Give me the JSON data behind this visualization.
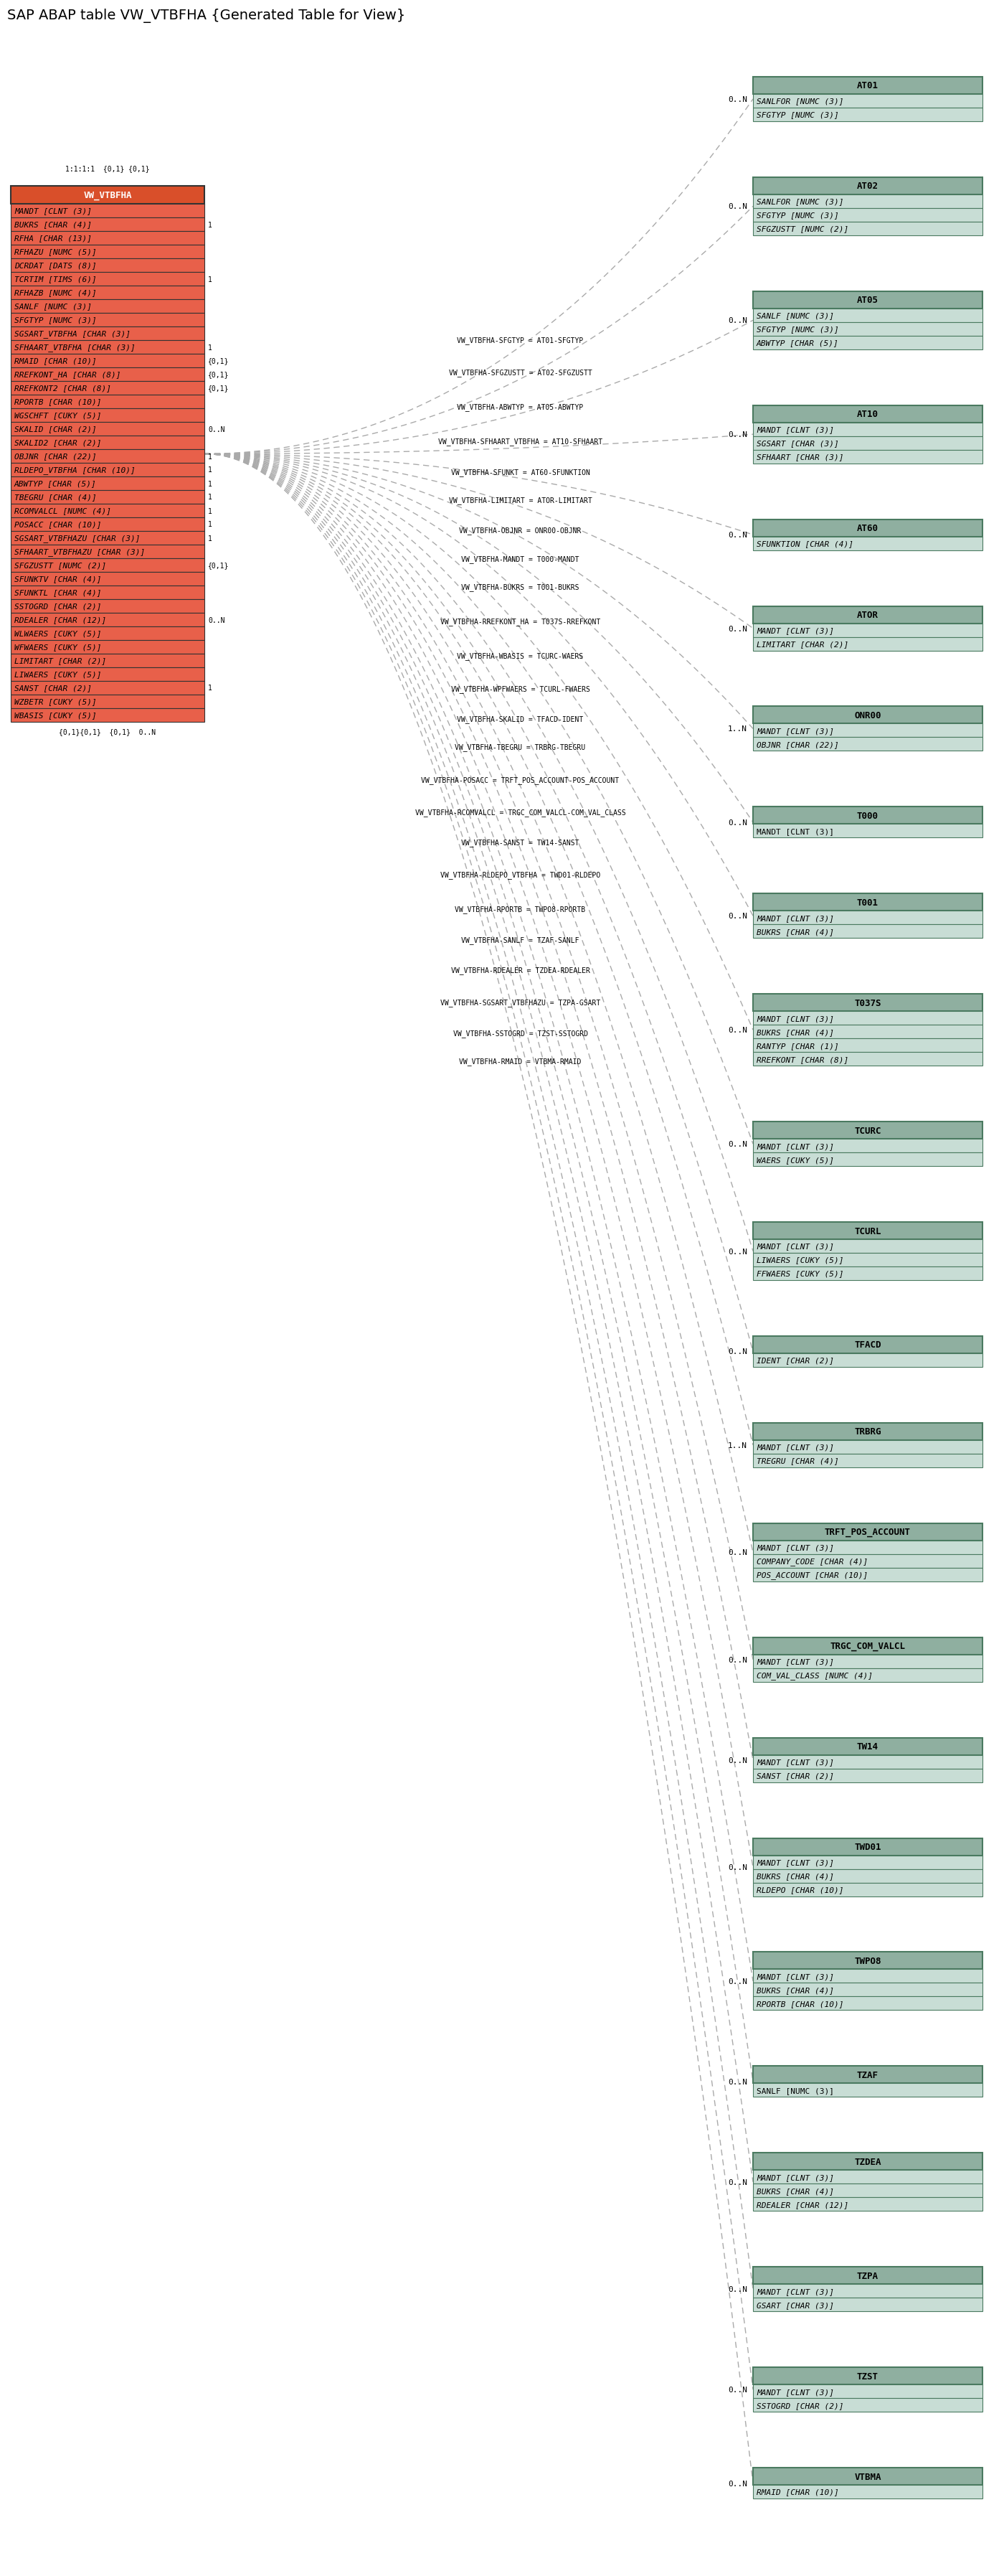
{
  "title": "SAP ABAP table VW_VTBFHA {Generated Table for View}",
  "main_table_name": "VW_VTBFHA",
  "main_fields": [
    [
      "MANDT",
      "CLNT (3)",
      true
    ],
    [
      "BUKRS",
      "CHAR (4)",
      true
    ],
    [
      "RFHA",
      "CHAR (13)",
      true
    ],
    [
      "RFHAZU",
      "NUMC (5)",
      true
    ],
    [
      "DCRDAT",
      "DATS (8)",
      true
    ],
    [
      "TCRTIM",
      "TIMS (6)",
      true
    ],
    [
      "RFHAZB",
      "NUMC (4)",
      true
    ],
    [
      "SANLF",
      "NUMC (3)",
      true
    ],
    [
      "SFGTYP",
      "NUMC (3)",
      true
    ],
    [
      "SGSART_VTBFHA",
      "CHAR (3)",
      true
    ],
    [
      "SFHAART_VTBFHA",
      "CHAR (3)",
      true
    ],
    [
      "RMAID",
      "CHAR (10)",
      true
    ],
    [
      "RREFKONT_HA",
      "CHAR (8)",
      true
    ],
    [
      "RREFKONT2",
      "CHAR (8)",
      true
    ],
    [
      "RPORTB",
      "CHAR (10)",
      true
    ],
    [
      "WGSCHFT",
      "CUKY (5)",
      true
    ],
    [
      "SKALID",
      "CHAR (2)",
      true
    ],
    [
      "SKALID2",
      "CHAR (2)",
      true
    ],
    [
      "OBJNR",
      "CHAR (22)",
      true
    ],
    [
      "RLDEPO_VTBFHA",
      "CHAR (10)",
      true
    ],
    [
      "ABWTYP",
      "CHAR (5)",
      true
    ],
    [
      "TBEGRU",
      "CHAR (4)",
      true
    ],
    [
      "RCOMVALCL",
      "NUMC (4)",
      true
    ],
    [
      "POSACC",
      "CHAR (10)",
      true
    ],
    [
      "SGSART_VTBFHAZU",
      "CHAR (3)",
      true
    ],
    [
      "SFHAART_VTBFHAZU",
      "CHAR (3)",
      true
    ],
    [
      "SFGZUSTT",
      "NUMC (2)",
      true
    ],
    [
      "SFUNKTV",
      "CHAR (4)",
      true
    ],
    [
      "SFUNKTL",
      "CHAR (4)",
      true
    ],
    [
      "SSTOGRD",
      "CHAR (2)",
      true
    ],
    [
      "RDEALER",
      "CHAR (12)",
      true
    ],
    [
      "WLWAERS",
      "CUKY (5)",
      true
    ],
    [
      "WFWAERS",
      "CUKY (5)",
      true
    ],
    [
      "LIMITART",
      "CHAR (2)",
      true
    ],
    [
      "LIWAERS",
      "CUKY (5)",
      true
    ],
    [
      "SANST",
      "CHAR (2)",
      true
    ],
    [
      "WZBETR",
      "CUKY (5)",
      true
    ],
    [
      "WBASIS",
      "CUKY (5)",
      true
    ]
  ],
  "related_tables": [
    {
      "name": "AT01",
      "fields": [
        [
          "SANLFOR",
          "NUMC (3)",
          true
        ],
        [
          "SFGTYP",
          "NUMC (3)",
          true
        ]
      ],
      "relation_label": "VW_VTBFHA-SFGTYP = AT01-SFGTYP",
      "cardinality": "0..N"
    },
    {
      "name": "AT02",
      "fields": [
        [
          "SANLFOR",
          "NUMC (3)",
          true
        ],
        [
          "SFGTYP",
          "NUMC (3)",
          true
        ],
        [
          "SFGZUSTT",
          "NUMC (2)",
          true
        ]
      ],
      "relation_label": "VW_VTBFHA-SFGZUSTT = AT02-SFGZUSTT",
      "cardinality": "0..N"
    },
    {
      "name": "AT05",
      "fields": [
        [
          "SANLF",
          "NUMC (3)",
          true
        ],
        [
          "SFGTYP",
          "NUMC (3)",
          true
        ],
        [
          "ABWTYP",
          "CHAR (5)",
          true
        ]
      ],
      "relation_label": "VW_VTBFHA-ABWTYP = AT05-ABWTYP",
      "cardinality": "0..N"
    },
    {
      "name": "AT10",
      "fields": [
        [
          "MANDT",
          "CLNT (3)",
          true
        ],
        [
          "SGSART",
          "CHAR (3)",
          true
        ],
        [
          "SFHAART",
          "CHAR (3)",
          true
        ]
      ],
      "relation_label": "VW_VTBFHA-SFHAART_VTBFHA = AT10-SFHAART",
      "cardinality": "0..N"
    },
    {
      "name": "AT60",
      "fields": [
        [
          "SFUNKTION",
          "CHAR (4)",
          true
        ]
      ],
      "relation_label": "VW_VTBFHA-SFUNKT = AT60-SFUNKTION",
      "cardinality": "0..N"
    },
    {
      "name": "ATOR",
      "fields": [
        [
          "MANDT",
          "CLNT (3)",
          true
        ],
        [
          "LIMITART",
          "CHAR (2)",
          true
        ]
      ],
      "relation_label": "VW_VTBFHA-LIMITART = ATOR-LIMITART",
      "cardinality": "0..N"
    },
    {
      "name": "ONR00",
      "fields": [
        [
          "MANDT",
          "CLNT (3)",
          true
        ],
        [
          "OBJNR",
          "CHAR (22)",
          true
        ]
      ],
      "relation_label": "VW_VTBFHA-OBJNR = ONR00-OBJNR",
      "cardinality": "1..N"
    },
    {
      "name": "T000",
      "fields": [
        [
          "MANDT",
          "CLNT (3)",
          false
        ]
      ],
      "relation_label": "VW_VTBFHA-MANDT = T000-MANDT",
      "cardinality": "0..N"
    },
    {
      "name": "T001",
      "fields": [
        [
          "MANDT",
          "CLNT (3)",
          true
        ],
        [
          "BUKRS",
          "CHAR (4)",
          true
        ]
      ],
      "relation_label": "VW_VTBFHA-BUKRS = T001-BUKRS",
      "cardinality": "0..N"
    },
    {
      "name": "T037S",
      "fields": [
        [
          "MANDT",
          "CLNT (3)",
          true
        ],
        [
          "BUKRS",
          "CHAR (4)",
          true
        ],
        [
          "RANTYP",
          "CHAR (1)",
          true
        ],
        [
          "RREFKONT",
          "CHAR (8)",
          true
        ]
      ],
      "relation_label": "VW_VTBFHA-RREFKONT_HA = T037S-RREFKONT",
      "cardinality": "0..N"
    },
    {
      "name": "TCURC",
      "fields": [
        [
          "MANDT",
          "CLNT (3)",
          true
        ],
        [
          "WAERS",
          "CUKY (5)",
          true
        ]
      ],
      "relation_label": "VW_VTBFHA-WBASIS = TCURC-WAERS",
      "cardinality": "0..N"
    },
    {
      "name": "TCURL",
      "fields": [
        [
          "MANDT",
          "CLNT (3)",
          true
        ],
        [
          "LIWAERS",
          "CUKY (5)",
          true
        ],
        [
          "FFWAERS",
          "CUKY (5)",
          true
        ]
      ],
      "relation_label": "VW_VTBFHA-WPFWAERS = TCURL-FWAERS",
      "cardinality": "0..N"
    },
    {
      "name": "TFACD",
      "fields": [
        [
          "IDENT",
          "CHAR (2)",
          true
        ]
      ],
      "relation_label": "VW_VTBFHA-SKALID = TFACD-IDENT",
      "cardinality": "0..N"
    },
    {
      "name": "TRBRG",
      "fields": [
        [
          "MANDT",
          "CLNT (3)",
          true
        ],
        [
          "TREGRU",
          "CHAR (4)",
          true
        ]
      ],
      "relation_label": "VW_VTBFHA-TBEGRU = TRBRG-TBEGRU",
      "cardinality": "1..N"
    },
    {
      "name": "TRFT_POS_ACCOUNT",
      "fields": [
        [
          "MANDT",
          "CLNT (3)",
          true
        ],
        [
          "COMPANY_CODE",
          "CHAR (4)",
          true
        ],
        [
          "POS_ACCOUNT",
          "CHAR (10)",
          true
        ]
      ],
      "relation_label": "VW_VTBFHA-POSACC = TRFT_POS_ACCOUNT-POS_ACCOUNT",
      "cardinality": "0..N"
    },
    {
      "name": "TRGC_COM_VALCL",
      "fields": [
        [
          "MANDT",
          "CLNT (3)",
          true
        ],
        [
          "COM_VAL_CLASS",
          "NUMC (4)",
          true
        ]
      ],
      "relation_label": "VW_VTBFHA-RCOMVALCL = TRGC_COM_VALCL-COM_VAL_CLASS",
      "cardinality": "0..N"
    },
    {
      "name": "TW14",
      "fields": [
        [
          "MANDT",
          "CLNT (3)",
          true
        ],
        [
          "SANST",
          "CHAR (2)",
          true
        ]
      ],
      "relation_label": "VW_VTBFHA-SANST = TW14-SANST",
      "cardinality": "0..N"
    },
    {
      "name": "TWD01",
      "fields": [
        [
          "MANDT",
          "CLNT (3)",
          true
        ],
        [
          "BUKRS",
          "CHAR (4)",
          true
        ],
        [
          "RLDEPO",
          "CHAR (10)",
          true
        ]
      ],
      "relation_label": "VW_VTBFHA-RLDEPO_VTBFHA = TWD01-RLDEPO",
      "cardinality": "0..N"
    },
    {
      "name": "TWPO8",
      "fields": [
        [
          "MANDT",
          "CLNT (3)",
          true
        ],
        [
          "BUKRS",
          "CHAR (4)",
          true
        ],
        [
          "RPORTB",
          "CHAR (10)",
          true
        ]
      ],
      "relation_label": "VW_VTBFHA-RPORTB = TWPO8-RPORTB",
      "cardinality": "0..N"
    },
    {
      "name": "TZAF",
      "fields": [
        [
          "SANLF",
          "NUMC (3)",
          false
        ]
      ],
      "relation_label": "VW_VTBFHA-SANLF = TZAF-SANLF",
      "cardinality": "0..N"
    },
    {
      "name": "TZDEA",
      "fields": [
        [
          "MANDT",
          "CLNT (3)",
          true
        ],
        [
          "BUKRS",
          "CHAR (4)",
          true
        ],
        [
          "RDEALER",
          "CHAR (12)",
          true
        ]
      ],
      "relation_label": "VW_VTBFHA-RDEALER = TZDEA-RDEALER",
      "cardinality": "0..N"
    },
    {
      "name": "TZPA",
      "fields": [
        [
          "MANDT",
          "CLNT (3)",
          true
        ],
        [
          "GSART",
          "CHAR (3)",
          true
        ]
      ],
      "relation_label": "VW_VTBFHA-SGSART_VTBFHAZU = TZPA-GSART",
      "cardinality": "0..N"
    },
    {
      "name": "TZST",
      "fields": [
        [
          "MANDT",
          "CLNT (3)",
          true
        ],
        [
          "SSTOGRD",
          "CHAR (2)",
          true
        ]
      ],
      "relation_label": "VW_VTBFHA-SSTOGRD = TZST-SSTOGRD",
      "cardinality": "0..N"
    },
    {
      "name": "VTBMA",
      "fields": [
        [
          "RMAID",
          "CHAR (10)",
          true
        ]
      ],
      "relation_label": "VW_VTBFHA-RMAID = VTBMA-RMAID",
      "cardinality": "0..N"
    }
  ],
  "rt_header_color": "#8fafa0",
  "rt_field_bg": "#c8ddd5",
  "rt_border_color": "#4a7a60",
  "main_header_color": "#d94f2a",
  "main_field_bg": "#e8604a",
  "main_border_color": "#333333",
  "line_color": "#aaaaaa",
  "bg_color": "#ffffff",
  "title_fontsize": 14,
  "main_header_fontsize": 9,
  "main_field_fontsize": 8,
  "rt_header_fontsize": 9,
  "rt_field_fontsize": 8
}
